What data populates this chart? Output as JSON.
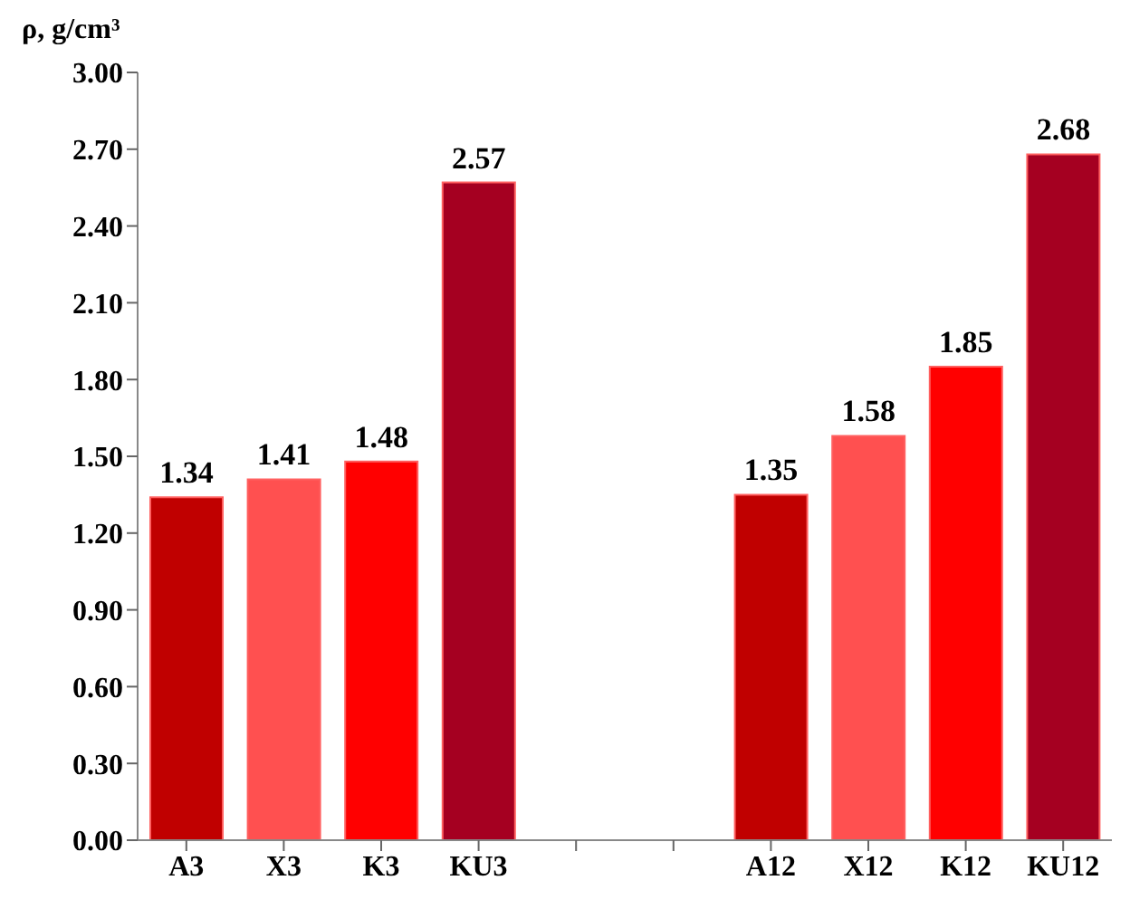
{
  "chart_data": {
    "type": "bar",
    "ylabel": "ρ, g/cm³",
    "categories": [
      "A3",
      "X3",
      "K3",
      "KU3",
      null,
      null,
      "A12",
      "X12",
      "K12",
      "KU12"
    ],
    "values": [
      1.34,
      1.41,
      1.48,
      2.57,
      null,
      null,
      1.35,
      1.58,
      1.85,
      2.68
    ],
    "colors": [
      "#c00000",
      "#ff5050",
      "#ff0000",
      "#a50021",
      null,
      null,
      "#c00000",
      "#ff5050",
      "#ff0000",
      "#a50021"
    ],
    "ylim": [
      0,
      3
    ],
    "yticks": [
      {
        "value": 0,
        "label": "0.00"
      },
      {
        "value": 0.3,
        "label": "0.30"
      },
      {
        "value": 0.6,
        "label": "0.60"
      },
      {
        "value": 0.9,
        "label": "0.90"
      },
      {
        "value": 1.2,
        "label": "1.20"
      },
      {
        "value": 1.5,
        "label": "1.50"
      },
      {
        "value": 1.8,
        "label": "1.80"
      },
      {
        "value": 2.1,
        "label": "2.10"
      },
      {
        "value": 2.4,
        "label": "2.40"
      },
      {
        "value": 2.7,
        "label": "2.70"
      },
      {
        "value": 3,
        "label": "3.00"
      }
    ],
    "data_labels": true,
    "grid": false,
    "legend": false
  }
}
